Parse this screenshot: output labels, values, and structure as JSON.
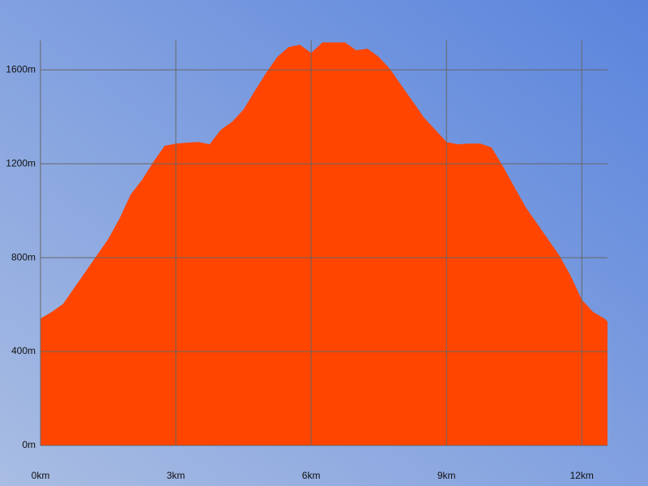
{
  "chart_data": {
    "type": "area",
    "x": [
      0,
      0.25,
      0.5,
      0.75,
      1.0,
      1.25,
      1.5,
      1.75,
      2.0,
      2.25,
      2.5,
      2.75,
      3.0,
      3.25,
      3.5,
      3.75,
      4.0,
      4.25,
      4.5,
      4.75,
      5.0,
      5.25,
      5.5,
      5.75,
      6.0,
      6.25,
      6.5,
      6.75,
      7.0,
      7.25,
      7.5,
      7.75,
      8.0,
      8.25,
      8.5,
      8.75,
      9.0,
      9.25,
      9.5,
      9.75,
      10.0,
      10.25,
      10.5,
      10.75,
      11.0,
      11.25,
      11.5,
      11.75,
      12.0,
      12.25,
      12.5,
      12.57
    ],
    "values": [
      541,
      569,
      603,
      672,
      741,
      810,
      879,
      966,
      1069,
      1131,
      1207,
      1276,
      1286,
      1290,
      1293,
      1283,
      1345,
      1379,
      1431,
      1510,
      1586,
      1655,
      1697,
      1707,
      1672,
      1717,
      1717,
      1717,
      1683,
      1690,
      1655,
      1603,
      1534,
      1466,
      1397,
      1345,
      1293,
      1283,
      1286,
      1286,
      1269,
      1190,
      1103,
      1017,
      948,
      879,
      810,
      724,
      621,
      569,
      541,
      528
    ],
    "color": "#ff4500",
    "xlim": [
      0,
      12.57
    ],
    "xticks": [
      {
        "value": 0,
        "label": "0km"
      },
      {
        "value": 3,
        "label": "3km"
      },
      {
        "value": 6,
        "label": "6km"
      },
      {
        "value": 9,
        "label": "9km"
      },
      {
        "value": 12,
        "label": "12km"
      }
    ],
    "ylim": [
      0,
      1725
    ],
    "yticks": [
      {
        "value": 0,
        "label": "0m"
      },
      {
        "value": 400,
        "label": "400m"
      },
      {
        "value": 800,
        "label": "800m"
      },
      {
        "value": 1200,
        "label": "1200m"
      },
      {
        "value": 1600,
        "label": "1600m"
      }
    ],
    "grid": true
  }
}
